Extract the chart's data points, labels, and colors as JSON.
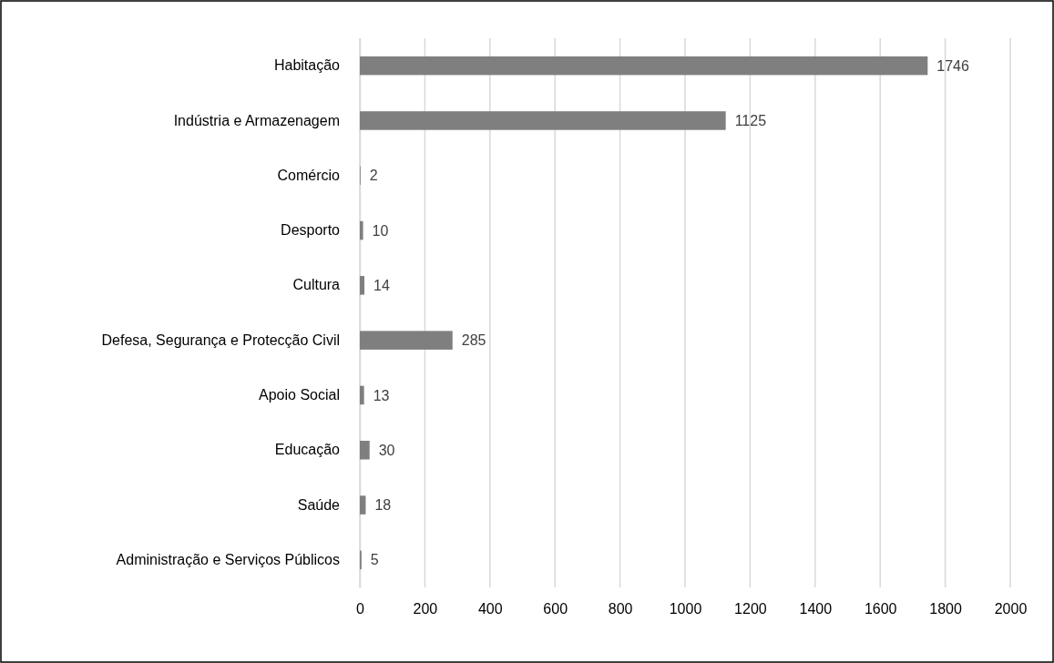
{
  "chart_data": {
    "type": "bar",
    "orientation": "horizontal",
    "categories": [
      "Habitação",
      "Indústria e Armazenagem",
      "Comércio",
      "Desporto",
      "Cultura",
      "Defesa, Segurança e Protecção Civil",
      "Apoio Social",
      "Educação",
      "Saúde",
      "Administração e Serviços Públicos"
    ],
    "values": [
      1746,
      1125,
      2,
      10,
      14,
      285,
      13,
      30,
      18,
      5
    ],
    "color": "#7f7f7f",
    "xlim": [
      0,
      2000
    ],
    "xticks": [
      0,
      200,
      400,
      600,
      800,
      1000,
      1200,
      1400,
      1600,
      1800,
      2000
    ],
    "grid": "x",
    "data_labels": true
  }
}
